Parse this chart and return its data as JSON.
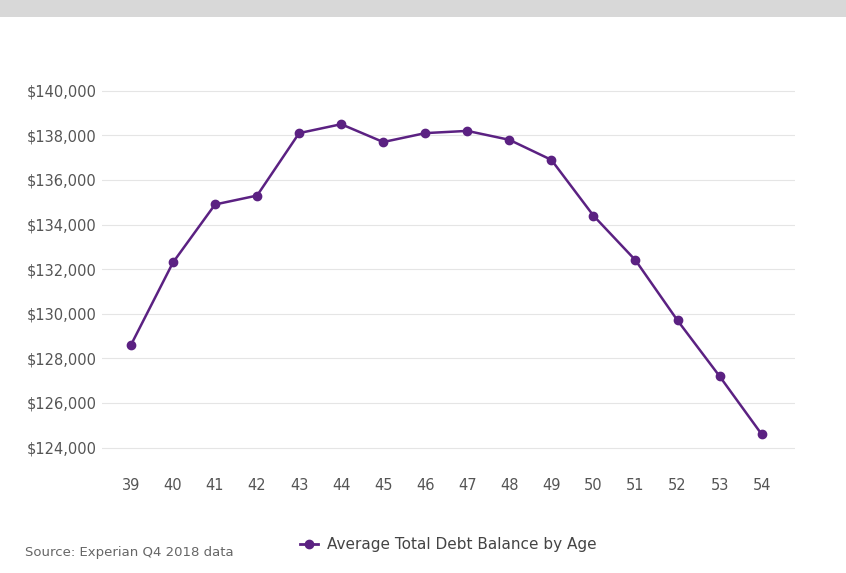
{
  "ages": [
    39,
    40,
    41,
    42,
    43,
    44,
    45,
    46,
    47,
    48,
    49,
    50,
    51,
    52,
    53,
    54
  ],
  "values": [
    128600,
    132300,
    134900,
    135300,
    138100,
    138500,
    137700,
    138100,
    138200,
    137800,
    136900,
    134400,
    132400,
    129700,
    127200,
    124600
  ],
  "line_color": "#5b2182",
  "marker_color": "#5b2182",
  "background_color": "#ffffff",
  "plot_bg_color": "#ffffff",
  "grid_color": "#e5e5e5",
  "top_bar_color": "#d8d8d8",
  "legend_label": "Average Total Debt Balance by Age",
  "source_text": "Source: Experian Q4 2018 data",
  "ylim": [
    123000,
    141500
  ],
  "ytick_values": [
    124000,
    126000,
    128000,
    130000,
    132000,
    134000,
    136000,
    138000,
    140000
  ],
  "tick_fontsize": 10.5,
  "legend_fontsize": 11,
  "source_fontsize": 9.5,
  "line_width": 1.8,
  "marker_size": 6
}
